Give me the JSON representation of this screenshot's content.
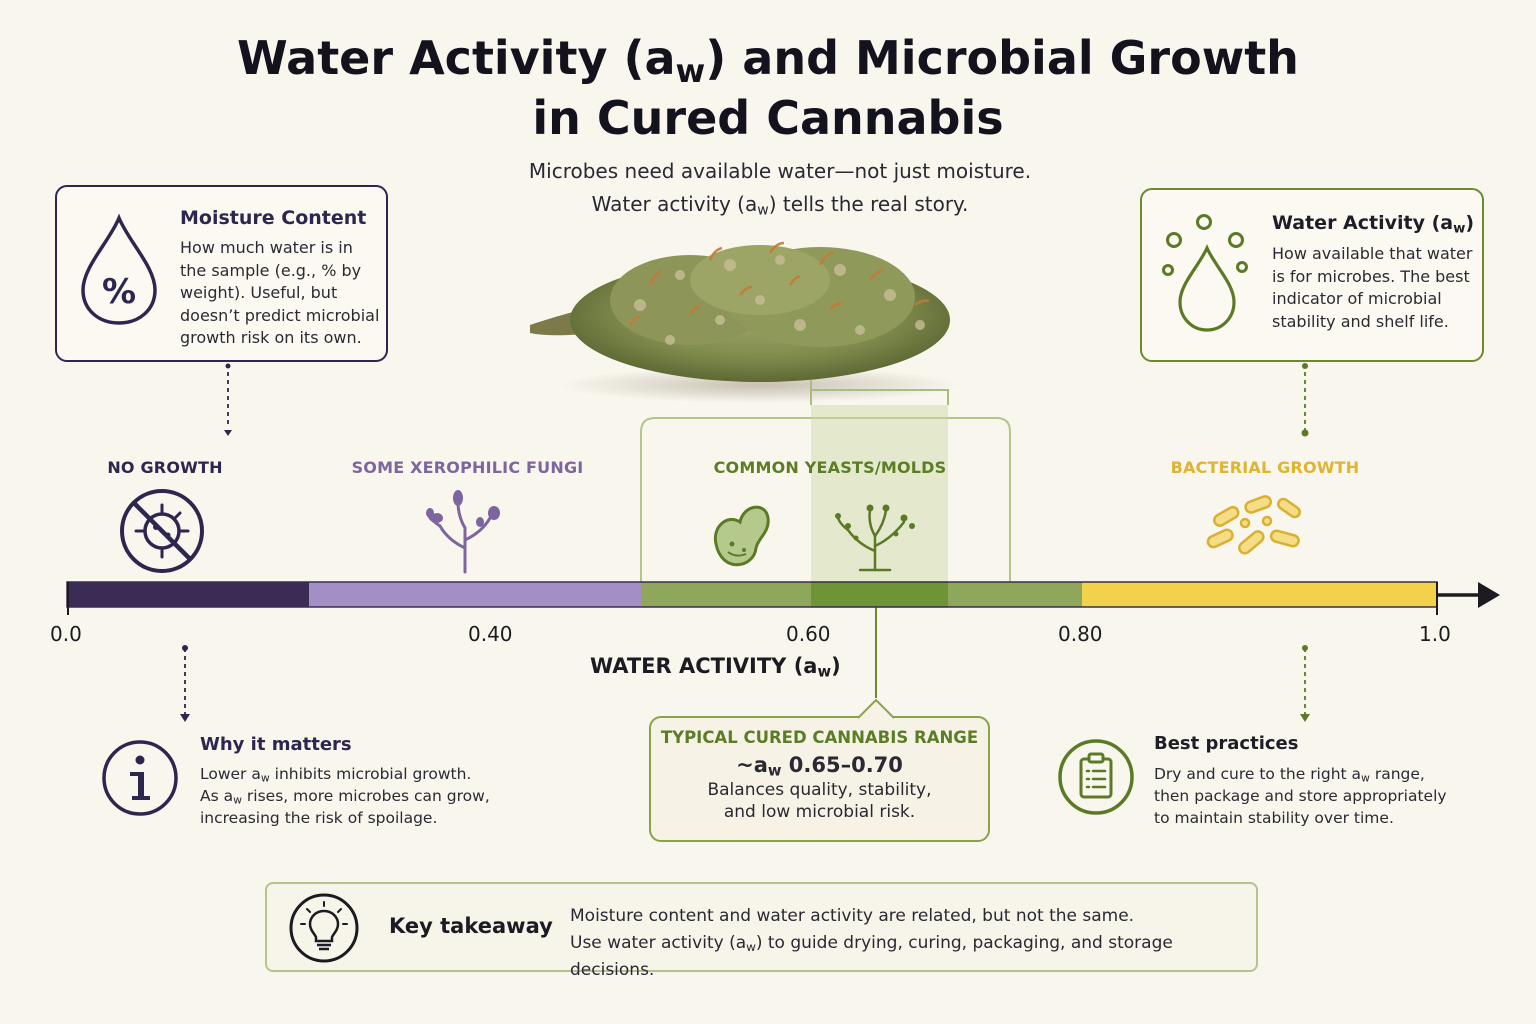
{
  "title": {
    "line1_a": "Water Activity (a",
    "line1_sub": "w",
    "line1_b": ") and Microbial Growth",
    "line2": "in Cured Cannabis"
  },
  "subtitle": {
    "line1": "Microbes need available water—not just moisture.",
    "line2_a": "Water activity (a",
    "line2_sub": "w",
    "line2_b": ") tells the real story."
  },
  "moisture_card": {
    "icon": "percent-drop-icon",
    "title": "Moisture Content",
    "lines": [
      "How much water is in",
      "the sample (e.g., % by",
      "weight). Useful, but",
      "doesn’t predict microbial",
      "growth risk on its own."
    ]
  },
  "water_card": {
    "icon": "drop-with-droplets-icon",
    "title_a": "Water Activity (a",
    "title_sub": "w",
    "title_b": ")",
    "lines": [
      "How available that water",
      "is for microbes. The best",
      "indicator of microbial",
      "stability and shelf life."
    ]
  },
  "zones": [
    {
      "label": "NO GROWTH",
      "icon": "no-microbe-icon",
      "color": "#3b2d52"
    },
    {
      "label": "SOME XEROPHILIC FUNGI",
      "icon": "fungi-stalk-icon",
      "color": "#7d659f"
    },
    {
      "label": "COMMON YEASTS/MOLDS",
      "icon": "yeast-mold-icon",
      "color": "#5b7d26"
    },
    {
      "label": "BACTERIAL GROWTH",
      "icon": "bacteria-icon",
      "color": "#e0b330"
    }
  ],
  "scale": {
    "ticks": [
      "0.0",
      "0.40",
      "0.60",
      "0.80",
      "1.0"
    ],
    "axis_title_a": "WATER ACTIVITY (a",
    "axis_title_sub": "w",
    "axis_title_b": ")",
    "colors": {
      "dark_purple": "#3a2c55",
      "light_purple": "#a48fc4",
      "green": "#8ea75a",
      "dark_green": "#6f9437",
      "yellow": "#f2d24b",
      "arrow": "#1c1b22"
    }
  },
  "typical_range": {
    "title": "TYPICAL CURED CANNABIS RANGE",
    "value_prefix": "~a",
    "value_sub": "w",
    "value_b": " 0.65–0.70",
    "line1": "Balances quality, stability,",
    "line2": "and low microbial risk."
  },
  "why_matters": {
    "icon": "info-icon",
    "title": "Why it matters",
    "line1_a": "Lower a",
    "line1_sub": "w",
    "line1_b": " inhibits microbial growth.",
    "line2_a": "As a",
    "line2_sub": "w",
    "line2_b": " rises, more microbes can grow,",
    "line3": "increasing the risk of spoilage."
  },
  "best_practices": {
    "icon": "clipboard-icon",
    "title": "Best practices",
    "line1_a": "Dry and cure to the right a",
    "line1_sub": "w",
    "line1_b": " range,",
    "line2": "then package and store appropriately",
    "line3": "to maintain stability over time."
  },
  "takeaway": {
    "icon": "lightbulb-icon",
    "label": "Key takeaway",
    "line1": "Moisture content and water activity are related, but not the same.",
    "line2_a": "Use water activity (a",
    "line2_sub": "w",
    "line2_b": ") to guide drying, curing, packaging, and storage decisions."
  },
  "colors": {
    "background": "#f9f6ee",
    "purple_border": "#2f2650",
    "green_border": "#6b8a2e",
    "range_border": "#8aa24c",
    "takeaway_border": "#b8c28e"
  }
}
